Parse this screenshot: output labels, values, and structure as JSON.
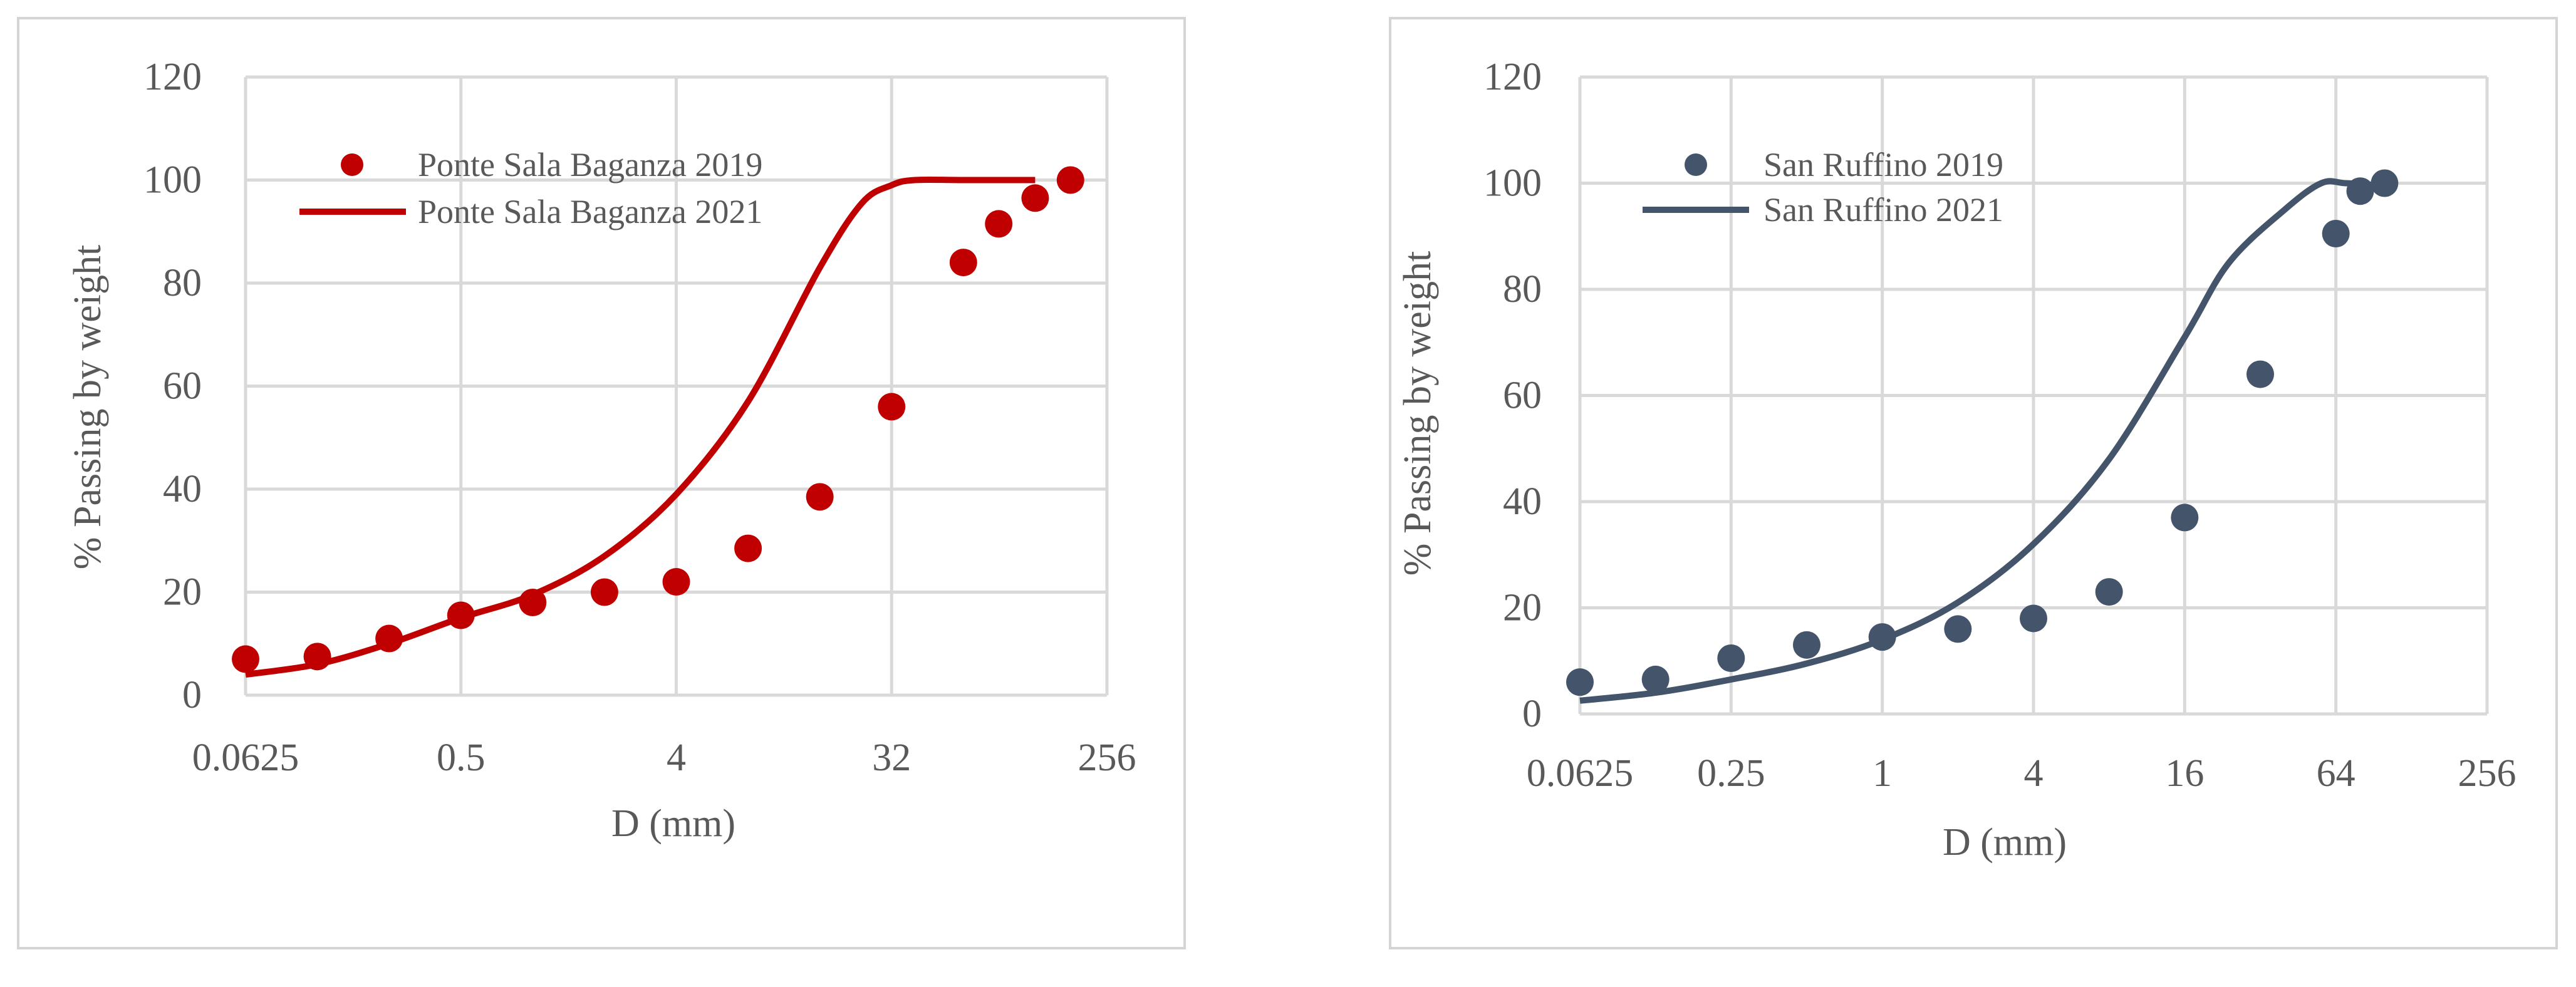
{
  "chart_data": [
    {
      "type": "scatter",
      "title": "",
      "xlabel": "D (mm)",
      "ylabel": "% Passing by weight",
      "x_scale": "log2",
      "xlim": [
        0.0625,
        256
      ],
      "ylim": [
        0,
        120
      ],
      "x_ticks": [
        "0.0625",
        "0.5",
        "4",
        "32",
        "256"
      ],
      "y_ticks": [
        "0",
        "20",
        "40",
        "60",
        "80",
        "100",
        "120"
      ],
      "grid": true,
      "legend_position": "top-left",
      "series": [
        {
          "name": "Ponte Sala Baganza 2019",
          "kind": "points",
          "color": "#C00000",
          "x": [
            0.0625,
            0.125,
            0.25,
            0.5,
            1,
            2,
            4,
            8,
            16,
            32,
            64,
            90,
            128,
            180
          ],
          "y": [
            7,
            7.5,
            11,
            15.5,
            18,
            20,
            22,
            28.5,
            38.5,
            56,
            84,
            91.5,
            96.5,
            100
          ]
        },
        {
          "name": "Ponte Sala Baganza 2021",
          "kind": "line",
          "color": "#C00000",
          "x": [
            0.0625,
            0.125,
            0.25,
            0.5,
            1,
            2,
            4,
            8,
            16,
            24,
            32,
            40,
            64,
            128
          ],
          "y": [
            4,
            6,
            10,
            15,
            19.5,
            27,
            39,
            57,
            83,
            95.5,
            99,
            100,
            100,
            100
          ]
        }
      ]
    },
    {
      "type": "scatter",
      "title": "",
      "xlabel": "D (mm)",
      "ylabel": "% Passing by weight",
      "x_scale": "log2",
      "xlim": [
        0.0625,
        256
      ],
      "ylim": [
        0,
        120
      ],
      "x_ticks": [
        "0.0625",
        "0.25",
        "1",
        "4",
        "16",
        "64",
        "256"
      ],
      "y_ticks": [
        "0",
        "20",
        "40",
        "60",
        "80",
        "100",
        "120"
      ],
      "grid": true,
      "legend_position": "top-left",
      "series": [
        {
          "name": "San Ruffino 2019",
          "kind": "points",
          "color": "#44546A",
          "x": [
            0.0625,
            0.125,
            0.25,
            0.5,
            1,
            2,
            4,
            8,
            16,
            32,
            64,
            80,
            100
          ],
          "y": [
            6,
            6.5,
            10.5,
            13,
            14.5,
            16,
            18,
            23,
            37,
            64,
            90.5,
            98.5,
            100
          ]
        },
        {
          "name": "San Ruffino 2021",
          "kind": "line",
          "color": "#44546A",
          "x": [
            0.0625,
            0.125,
            0.25,
            0.5,
            1,
            2,
            4,
            8,
            16,
            24,
            40,
            56,
            70,
            100
          ],
          "y": [
            2.5,
            4,
            6.5,
            9.5,
            14,
            21,
            32,
            48,
            71,
            85,
            95,
            100,
            100,
            99.5
          ]
        }
      ]
    }
  ]
}
